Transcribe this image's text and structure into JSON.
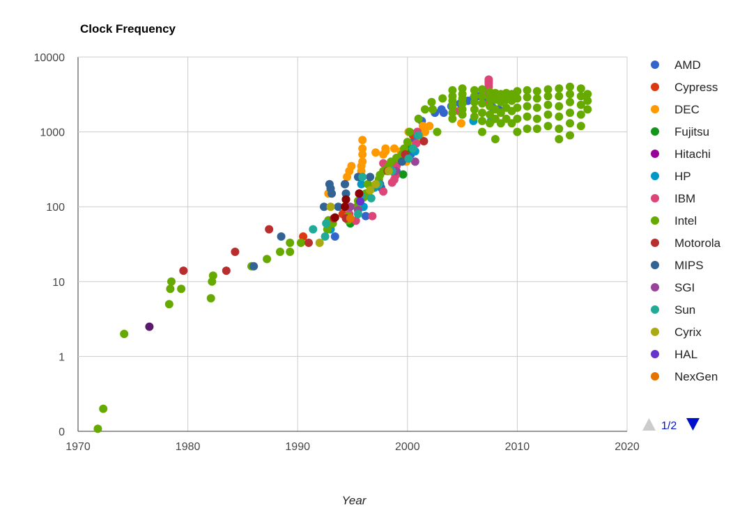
{
  "chart_data": {
    "type": "scatter",
    "title": "Clock Frequency",
    "xlabel": "Year",
    "ylabel": "",
    "x_scale": "linear",
    "y_scale": "log",
    "xlim": [
      1970,
      2020
    ],
    "ylim": [
      0.1,
      10000
    ],
    "x_ticks": [
      "1970",
      "1980",
      "1990",
      "2000",
      "2010",
      "2020"
    ],
    "y_ticks": [
      {
        "value": 0.1,
        "label": "0"
      },
      {
        "value": 1,
        "label": "1"
      },
      {
        "value": 10,
        "label": "10"
      },
      {
        "value": 100,
        "label": "100"
      },
      {
        "value": 1000,
        "label": "1000"
      },
      {
        "value": 10000,
        "label": "10000"
      }
    ],
    "grid": true,
    "legend_position": "right",
    "pager": {
      "label": "1/2"
    },
    "series": [
      {
        "name": "AMD",
        "color": "#3366cc",
        "points": [
          [
            1993.4,
            40
          ],
          [
            1995.5,
            100
          ],
          [
            1996.2,
            75
          ],
          [
            1997.6,
            180
          ],
          [
            1999.0,
            300
          ],
          [
            2000.3,
            500
          ],
          [
            2000.6,
            750
          ],
          [
            2000.9,
            1000
          ],
          [
            2001.3,
            1400
          ],
          [
            2002.5,
            1800
          ],
          [
            2003.1,
            2000
          ],
          [
            2003.3,
            1800
          ],
          [
            2004.0,
            2200
          ],
          [
            2004.8,
            2400
          ],
          [
            2005.5,
            2600
          ],
          [
            2006.0,
            2800
          ],
          [
            2006.4,
            3000
          ],
          [
            2007.0,
            2600
          ],
          [
            2007.5,
            2300
          ],
          [
            2007.8,
            2100
          ],
          [
            2008.3,
            2000
          ]
        ]
      },
      {
        "name": "Cypress",
        "color": "#dc3912",
        "points": [
          [
            1990.5,
            40
          ],
          [
            1994.1,
            80
          ],
          [
            2000.5,
            900
          ],
          [
            2001.3,
            1000
          ]
        ]
      },
      {
        "name": "DEC",
        "color": "#ff9900",
        "points": [
          [
            1992.8,
            150
          ],
          [
            1993.0,
            100
          ],
          [
            1994.3,
            200
          ],
          [
            1994.5,
            250
          ],
          [
            1994.7,
            300
          ],
          [
            1994.9,
            350
          ],
          [
            1995.8,
            300
          ],
          [
            1995.8,
            350
          ],
          [
            1995.9,
            400
          ],
          [
            1995.9,
            500
          ],
          [
            1995.9,
            600
          ],
          [
            1995.9,
            780
          ],
          [
            1997.1,
            530
          ],
          [
            1997.8,
            500
          ],
          [
            1998.0,
            550
          ],
          [
            1998.0,
            600
          ],
          [
            1998.8,
            600
          ],
          [
            1999.4,
            550
          ],
          [
            1999.9,
            400
          ],
          [
            2000.1,
            1000
          ],
          [
            2000.3,
            650
          ],
          [
            2001.2,
            800
          ],
          [
            2001.4,
            1200
          ],
          [
            2001.6,
            1000
          ],
          [
            2002.0,
            1200
          ],
          [
            2004.9,
            1300
          ]
        ]
      },
      {
        "name": "Fujitsu",
        "color": "#109618",
        "points": [
          [
            1994.8,
            60
          ],
          [
            1999.6,
            270
          ],
          [
            2000.2,
            600
          ]
        ]
      },
      {
        "name": "Hitachi",
        "color": "#990099",
        "points": [
          [
            1995.6,
            150
          ]
        ]
      },
      {
        "name": "HP",
        "color": "#0099c6",
        "points": [
          [
            1993.0,
            50
          ],
          [
            1995.8,
            200
          ],
          [
            1996.0,
            100
          ],
          [
            1997.0,
            180
          ],
          [
            1999.5,
            480
          ],
          [
            2000.7,
            550
          ],
          [
            2000.9,
            900
          ],
          [
            2006.0,
            1400
          ],
          [
            2007.6,
            1400
          ]
        ]
      },
      {
        "name": "IBM",
        "color": "#dd4477",
        "points": [
          [
            1994.7,
            80
          ],
          [
            1995.3,
            65
          ],
          [
            1996.8,
            75
          ],
          [
            1997.8,
            160
          ],
          [
            1997.8,
            380
          ],
          [
            1998.6,
            210
          ],
          [
            1998.8,
            230
          ],
          [
            1998.9,
            260
          ],
          [
            1999.0,
            350
          ],
          [
            1999.0,
            400
          ],
          [
            2000.8,
            700
          ],
          [
            2000.9,
            1000
          ],
          [
            2004.7,
            1900
          ],
          [
            2007.4,
            2400
          ],
          [
            2007.4,
            3000
          ],
          [
            2007.4,
            3500
          ],
          [
            2007.4,
            4000
          ],
          [
            2007.4,
            4400
          ],
          [
            2007.4,
            4700
          ],
          [
            2007.4,
            5000
          ]
        ]
      },
      {
        "name": "Intel",
        "color": "#66aa00",
        "points": [
          [
            1971.8,
            0.108
          ],
          [
            1972.3,
            0.2
          ],
          [
            1974.2,
            2
          ],
          [
            1978.3,
            5
          ],
          [
            1978.4,
            8
          ],
          [
            1978.5,
            10
          ],
          [
            1979.4,
            8
          ],
          [
            1982.1,
            6
          ],
          [
            1982.2,
            10
          ],
          [
            1982.3,
            12
          ],
          [
            1985.8,
            16
          ],
          [
            1987.2,
            20
          ],
          [
            1988.4,
            25
          ],
          [
            1989.3,
            25
          ],
          [
            1989.3,
            33
          ],
          [
            1990.3,
            33
          ],
          [
            1992.7,
            50
          ],
          [
            1992.8,
            66
          ],
          [
            1993.2,
            60
          ],
          [
            1994.6,
            66
          ],
          [
            1994.6,
            75
          ],
          [
            1995.4,
            100
          ],
          [
            1995.5,
            120
          ],
          [
            1996.0,
            133
          ],
          [
            1996.2,
            150
          ],
          [
            1996.4,
            200
          ],
          [
            1997.4,
            233
          ],
          [
            1997.5,
            266
          ],
          [
            1997.8,
            300
          ],
          [
            1998.3,
            350
          ],
          [
            1998.5,
            400
          ],
          [
            1999.0,
            450
          ],
          [
            1999.5,
            500
          ],
          [
            1999.7,
            600
          ],
          [
            2000.0,
            733
          ],
          [
            2000.2,
            1000
          ],
          [
            2001.0,
            1500
          ],
          [
            2001.6,
            2000
          ],
          [
            2002.2,
            2500
          ],
          [
            2002.3,
            2000
          ],
          [
            2002.7,
            1000
          ],
          [
            2003.2,
            2800
          ],
          [
            2004.1,
            3600
          ],
          [
            2004.1,
            3000
          ],
          [
            2004.1,
            2600
          ],
          [
            2004.1,
            2200
          ],
          [
            2004.1,
            1800
          ],
          [
            2004.1,
            1500
          ],
          [
            2005.0,
            3800
          ],
          [
            2005.0,
            3200
          ],
          [
            2005.0,
            2800
          ],
          [
            2005.0,
            2400
          ],
          [
            2005.0,
            2000
          ],
          [
            2005.0,
            1700
          ],
          [
            2006.1,
            3600
          ],
          [
            2006.1,
            3000
          ],
          [
            2006.1,
            2500
          ],
          [
            2006.1,
            2000
          ],
          [
            2006.1,
            1600
          ],
          [
            2006.8,
            3700
          ],
          [
            2006.8,
            3000
          ],
          [
            2006.8,
            2400
          ],
          [
            2006.8,
            1800
          ],
          [
            2006.8,
            1400
          ],
          [
            2006.8,
            1000
          ],
          [
            2007.5,
            3400
          ],
          [
            2007.5,
            2800
          ],
          [
            2007.5,
            2200
          ],
          [
            2007.5,
            1700
          ],
          [
            2007.5,
            1300
          ],
          [
            2008.0,
            3300
          ],
          [
            2008.0,
            2700
          ],
          [
            2008.0,
            2000
          ],
          [
            2008.0,
            1500
          ],
          [
            2008.0,
            800
          ],
          [
            2008.5,
            3200
          ],
          [
            2008.5,
            2500
          ],
          [
            2008.5,
            1800
          ],
          [
            2008.5,
            1300
          ],
          [
            2009.0,
            3300
          ],
          [
            2009.0,
            2700
          ],
          [
            2009.0,
            2100
          ],
          [
            2009.0,
            1500
          ],
          [
            2009.5,
            3200
          ],
          [
            2009.5,
            2600
          ],
          [
            2009.5,
            1900
          ],
          [
            2009.5,
            1300
          ],
          [
            2010.0,
            3500
          ],
          [
            2010.0,
            2800
          ],
          [
            2010.0,
            2100
          ],
          [
            2010.0,
            1500
          ],
          [
            2010.0,
            1000
          ],
          [
            2010.9,
            3600
          ],
          [
            2010.9,
            2900
          ],
          [
            2010.9,
            2200
          ],
          [
            2010.9,
            1600
          ],
          [
            2010.9,
            1100
          ],
          [
            2011.8,
            3500
          ],
          [
            2011.8,
            2800
          ],
          [
            2011.8,
            2100
          ],
          [
            2011.8,
            1500
          ],
          [
            2011.8,
            1100
          ],
          [
            2012.8,
            3700
          ],
          [
            2012.8,
            3000
          ],
          [
            2012.8,
            2300
          ],
          [
            2012.8,
            1700
          ],
          [
            2012.8,
            1200
          ],
          [
            2013.8,
            3800
          ],
          [
            2013.8,
            3000
          ],
          [
            2013.8,
            2200
          ],
          [
            2013.8,
            1600
          ],
          [
            2013.8,
            1100
          ],
          [
            2013.8,
            800
          ],
          [
            2014.8,
            4000
          ],
          [
            2014.8,
            3200
          ],
          [
            2014.8,
            2500
          ],
          [
            2014.8,
            1800
          ],
          [
            2014.8,
            1300
          ],
          [
            2014.8,
            900
          ],
          [
            2015.8,
            3800
          ],
          [
            2015.8,
            3000
          ],
          [
            2015.8,
            2300
          ],
          [
            2015.8,
            1700
          ],
          [
            2015.8,
            1200
          ],
          [
            2016.4,
            3200
          ],
          [
            2016.4,
            2600
          ],
          [
            2016.4,
            2000
          ]
        ]
      },
      {
        "name": "Motorola",
        "color": "#b82e2e",
        "points": [
          [
            1979.6,
            14
          ],
          [
            1983.5,
            14
          ],
          [
            1984.3,
            25
          ],
          [
            1987.4,
            50
          ],
          [
            1991.0,
            33
          ],
          [
            1993.3,
            70
          ],
          [
            1994.4,
            70
          ],
          [
            1995.6,
            150
          ],
          [
            1998.2,
            300
          ],
          [
            1999.8,
            500
          ],
          [
            2001.5,
            750
          ]
        ]
      },
      {
        "name": "MIPS",
        "color": "#316395",
        "points": [
          [
            1986.0,
            16
          ],
          [
            1988.5,
            40
          ],
          [
            1992.4,
            100
          ],
          [
            1992.9,
            200
          ],
          [
            1993.0,
            175
          ],
          [
            1993.1,
            150
          ],
          [
            1993.7,
            100
          ],
          [
            1994.3,
            200
          ],
          [
            1994.4,
            150
          ],
          [
            1994.4,
            125
          ],
          [
            1995.5,
            250
          ],
          [
            1996.6,
            250
          ],
          [
            1997.5,
            200
          ],
          [
            1999.5,
            400
          ]
        ]
      },
      {
        "name": "SGI",
        "color": "#994499",
        "points": [
          [
            1994.8,
            100
          ],
          [
            1995.5,
            90
          ],
          [
            1998.9,
            300
          ],
          [
            2000.7,
            400
          ]
        ]
      },
      {
        "name": "Sun",
        "color": "#22aa99",
        "points": [
          [
            1991.4,
            50
          ],
          [
            1992.5,
            40
          ],
          [
            1992.6,
            60
          ],
          [
            1995.5,
            80
          ],
          [
            1995.8,
            140
          ],
          [
            1995.9,
            250
          ],
          [
            1996.7,
            130
          ],
          [
            1997.4,
            200
          ],
          [
            1998.6,
            300
          ],
          [
            2000.1,
            440
          ],
          [
            2000.5,
            600
          ],
          [
            2001.0,
            900
          ]
        ]
      },
      {
        "name": "Cyrix",
        "color": "#aaaa11",
        "points": [
          [
            1992.0,
            33
          ],
          [
            1993.0,
            100
          ],
          [
            1994.3,
            100
          ],
          [
            1996.6,
            166
          ],
          [
            1997.1,
            200
          ],
          [
            1998.3,
            300
          ]
        ]
      },
      {
        "name": "HAL",
        "color": "#6633cc",
        "points": [
          [
            1995.7,
            118
          ]
        ]
      },
      {
        "name": "NexGen",
        "color": "#e67300",
        "points": [
          [
            1994.8,
            70
          ]
        ]
      }
    ],
    "extra_points": [
      {
        "color": "#5b1a6e",
        "points": [
          [
            1976.5,
            2.5
          ]
        ]
      },
      {
        "color": "#8b0000",
        "points": [
          [
            1993.4,
            72
          ],
          [
            1994.3,
            100
          ],
          [
            1994.4,
            125
          ],
          [
            1995.6,
            150
          ]
        ]
      }
    ]
  }
}
